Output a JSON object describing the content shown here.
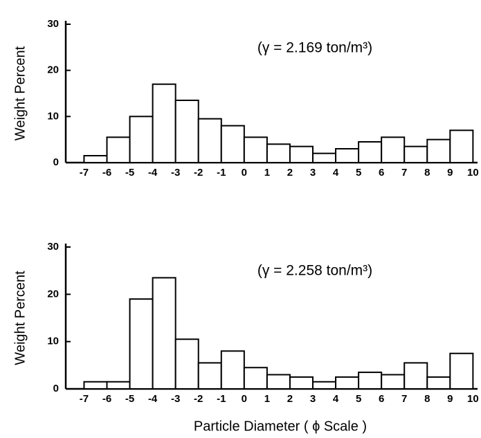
{
  "chart_data": [
    {
      "type": "histogram",
      "y_label": "Weight Percent",
      "annotation": "(γ = 2.169 ton/m³)",
      "bins": [
        -7,
        -6,
        -5,
        -4,
        -3,
        -2,
        -1,
        0,
        1,
        2,
        3,
        4,
        5,
        6,
        7,
        8,
        9,
        10
      ],
      "values": [
        1.5,
        5.5,
        10,
        17,
        13.5,
        9.5,
        8,
        5.5,
        4,
        3.5,
        2,
        3,
        4.5,
        5.5,
        3.5,
        5,
        7
      ],
      "xlim": [
        -7.8,
        10.2
      ],
      "xticks": [
        -7,
        -6,
        -5,
        -4,
        -3,
        -2,
        -1,
        0,
        1,
        2,
        3,
        4,
        5,
        6,
        7,
        8,
        9,
        10
      ],
      "ylim": [
        0,
        30
      ],
      "yticks": [
        0,
        10,
        20,
        30
      ]
    },
    {
      "type": "histogram",
      "y_label": "Weight Percent",
      "annotation": "(γ = 2.258 ton/m³)",
      "x_label": "Particle Diameter ( ϕ Scale )",
      "bins": [
        -7,
        -6,
        -5,
        -4,
        -3,
        -2,
        -1,
        0,
        1,
        2,
        3,
        4,
        5,
        6,
        7,
        8,
        9,
        10
      ],
      "values": [
        1.5,
        1.5,
        19,
        23.5,
        10.5,
        5.5,
        8,
        4.5,
        3,
        2.5,
        1.5,
        2.5,
        3.5,
        3,
        5.5,
        2.5,
        7.5
      ],
      "xlim": [
        -7.8,
        10.2
      ],
      "xticks": [
        -7,
        -6,
        -5,
        -4,
        -3,
        -2,
        -1,
        0,
        1,
        2,
        3,
        4,
        5,
        6,
        7,
        8,
        9,
        10
      ],
      "ylim": [
        0,
        30
      ],
      "yticks": [
        0,
        10,
        20,
        30
      ]
    }
  ]
}
